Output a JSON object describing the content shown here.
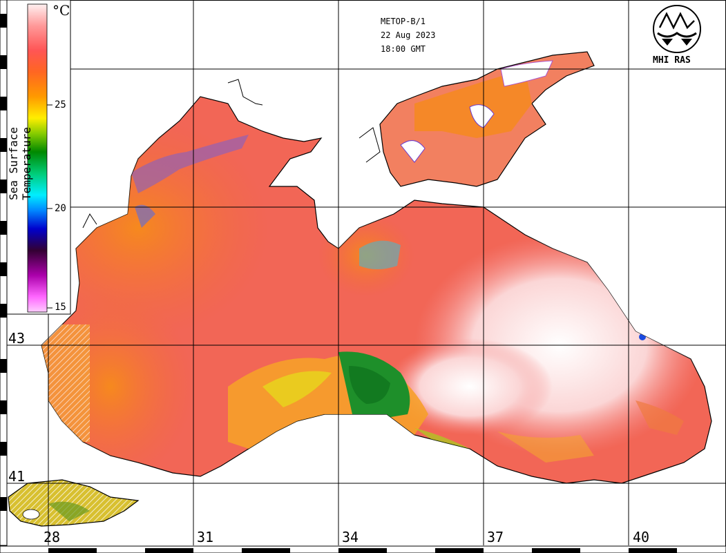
{
  "header": {
    "satellite": "METOP-B/1",
    "date": "22 Aug 2023",
    "time": "18:00 GMT"
  },
  "organization": {
    "label": "MHI RAS",
    "logo_icon": "mhi-ras-logo-icon"
  },
  "colorbar": {
    "title": "Sea Surface Temperature",
    "unit": "°C",
    "ticks": [
      "25",
      "20",
      "15"
    ],
    "range": [
      15,
      30
    ],
    "colors": [
      "#ff99ff",
      "#aa00aa",
      "#220044",
      "#0000cc",
      "#00ccff",
      "#00cc66",
      "#008800",
      "#99cc00",
      "#ffee00",
      "#ff8800",
      "#ff5533",
      "#ff8888",
      "#ffeeee"
    ]
  },
  "grid": {
    "longitudes": [
      "28",
      "31",
      "34",
      "37",
      "40"
    ],
    "latitudes": [
      "43",
      "41"
    ]
  },
  "colors": {
    "land": "#ffffff",
    "coast": "#000000",
    "warm_water": "#f26450",
    "hot_water": "#fde4e4",
    "mild_water": "#f47a28",
    "cool_water": "#228b22"
  }
}
